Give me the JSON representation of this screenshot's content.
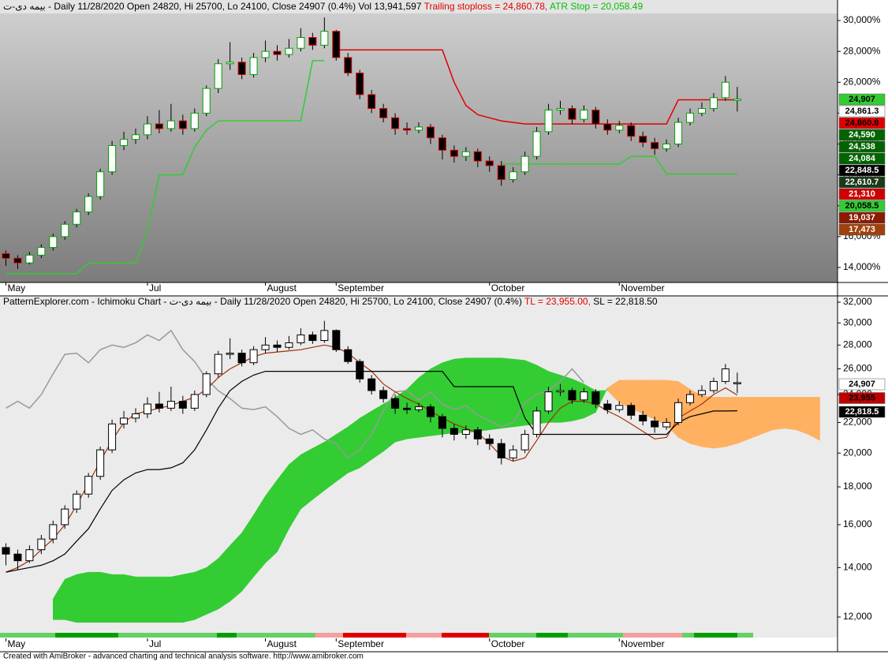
{
  "chart_data": [
    {
      "type": "candlestick",
      "title_main": "بیمه دی-ت - Daily 11/28/2020 Open 24820, Hi 25700, Lo 24100, Close 24907 (0.4%) Vol 13,941,597 ",
      "title_trailing": "Trailing stoploss = 24,860.78, ",
      "title_atr": "ATR Stop = 20,058.49",
      "xlim": [
        -0.5,
        70.5
      ],
      "xticks": [
        {
          "value": 0,
          "label": "May"
        },
        {
          "value": 12,
          "label": "Jul"
        },
        {
          "value": 22,
          "label": "August"
        },
        {
          "value": 28,
          "label": "September"
        },
        {
          "value": 41,
          "label": "October"
        },
        {
          "value": 52,
          "label": "November"
        }
      ],
      "ylim": [
        13030,
        30460
      ],
      "yticks": [
        {
          "value": 14000,
          "label": "14,000%"
        },
        {
          "value": 16000,
          "label": "16,000%"
        },
        {
          "value": 18000,
          "label": "18,000%"
        },
        {
          "value": 20000,
          "label": "20,000%"
        },
        {
          "value": 22000,
          "label": "22,000%"
        },
        {
          "value": 24000,
          "label": "24,000%"
        },
        {
          "value": 26000,
          "label": "26,000%"
        },
        {
          "value": 28000,
          "label": "28,000%"
        },
        {
          "value": 30000,
          "label": "30,000%"
        }
      ],
      "up_color": "#00a000",
      "down_color": "#e00000",
      "open": [
        14900,
        14600,
        14300,
        14800,
        15300,
        16000,
        16800,
        17600,
        18600,
        20200,
        21900,
        22300,
        22600,
        23300,
        23000,
        23500,
        23000,
        24000,
        25600,
        27200,
        27300,
        26500,
        27600,
        28000,
        27800,
        28200,
        28900,
        28400,
        29300,
        27600,
        26600,
        25200,
        24300,
        23700,
        23000,
        22900,
        23100,
        22400,
        21600,
        21200,
        21500,
        20900,
        20600,
        19700,
        20200,
        21200,
        22800,
        24200,
        24300,
        23600,
        24200,
        23300,
        22900,
        23200,
        22500,
        22100,
        21700,
        22000,
        23400,
        24000,
        24300,
        25000,
        24820
      ],
      "high": [
        15100,
        14800,
        15000,
        15500,
        16200,
        17000,
        17800,
        18800,
        20400,
        22200,
        22800,
        23000,
        23800,
        24200,
        24600,
        23900,
        24300,
        25800,
        27500,
        28600,
        27600,
        27900,
        28700,
        28400,
        28800,
        29500,
        29200,
        30200,
        29400,
        27900,
        26800,
        25500,
        24600,
        24000,
        23400,
        23400,
        23300,
        22600,
        21900,
        21800,
        21700,
        21200,
        20900,
        20500,
        21500,
        23100,
        24600,
        24800,
        24500,
        24500,
        24400,
        23600,
        23500,
        23400,
        22800,
        22400,
        22300,
        23700,
        24300,
        24700,
        25300,
        26400,
        25700
      ],
      "low": [
        14100,
        13900,
        14200,
        14600,
        15100,
        15800,
        16600,
        17400,
        18400,
        20000,
        21600,
        22000,
        22300,
        22700,
        22800,
        22600,
        22800,
        23800,
        25300,
        26800,
        26200,
        26300,
        27300,
        27400,
        27600,
        28000,
        28100,
        28200,
        27400,
        26400,
        24900,
        24000,
        23400,
        22600,
        22600,
        22700,
        22000,
        21000,
        20800,
        20900,
        20500,
        20200,
        19300,
        19500,
        20000,
        21000,
        22600,
        23900,
        23300,
        23400,
        23000,
        22600,
        22700,
        22200,
        21800,
        21300,
        21500,
        21800,
        23200,
        23800,
        24100,
        24800,
        24100
      ],
      "close": [
        14600,
        14300,
        14800,
        15300,
        16000,
        16800,
        17600,
        18600,
        20200,
        21900,
        22300,
        22600,
        23300,
        23000,
        23500,
        23000,
        24000,
        25600,
        27200,
        27300,
        26500,
        27600,
        28000,
        27800,
        28200,
        28900,
        28400,
        29300,
        27600,
        26600,
        25200,
        24300,
        23700,
        23000,
        22900,
        23100,
        22400,
        21600,
        21200,
        21500,
        20900,
        20600,
        19700,
        20200,
        21200,
        22800,
        24200,
        24300,
        23600,
        24200,
        23300,
        22900,
        23200,
        22500,
        22100,
        21700,
        22000,
        23400,
        24000,
        24300,
        25000,
        26000,
        24907
      ],
      "series": [
        {
          "color": "#e00000",
          "values": [
            null,
            null,
            null,
            null,
            null,
            null,
            null,
            null,
            null,
            null,
            null,
            null,
            null,
            null,
            null,
            null,
            null,
            null,
            null,
            null,
            null,
            null,
            null,
            null,
            null,
            null,
            null,
            null,
            28100,
            28100,
            28100,
            28100,
            28100,
            28100,
            28100,
            28100,
            28100,
            28100,
            26000,
            24500,
            23900,
            23700,
            23500,
            23400,
            23300,
            23300,
            23300,
            23300,
            23300,
            23300,
            23300,
            23300,
            23300,
            23300,
            23300,
            23300,
            23300,
            24860.78,
            24860.78,
            24860.78,
            24860.78,
            24860.78,
            24860.78
          ]
        },
        {
          "color": "#33cc33",
          "values": [
            13600,
            13600,
            13600,
            13600,
            13600,
            13600,
            13600,
            14300,
            14300,
            14300,
            14300,
            14300,
            16400,
            20000,
            20000,
            20000,
            21800,
            22900,
            23500,
            23500,
            23500,
            23500,
            23500,
            23500,
            23500,
            23500,
            27400,
            27400,
            null,
            null,
            null,
            null,
            null,
            null,
            null,
            null,
            null,
            null,
            null,
            null,
            null,
            null,
            20700,
            20700,
            20700,
            20700,
            20700,
            20700,
            20700,
            20700,
            20700,
            20700,
            20700,
            21200,
            21200,
            21200,
            20058.49,
            20058.49,
            20058.49,
            20058.49,
            20058.49,
            20058.49,
            20058.49
          ]
        }
      ],
      "price_labels": [
        {
          "value": 24907,
          "label": "24,907",
          "color": "#33cc33",
          "text_color": "#000"
        },
        {
          "value": 24861.3,
          "label": "24,861.3",
          "color": "#ffffff",
          "text_color": "#000"
        },
        {
          "value": 24860.8,
          "label": "24,860.8",
          "color": "#e00000",
          "text_color": "#000"
        },
        {
          "value": 24590,
          "label": "24,590",
          "color": "#006400",
          "text_color": "#fff"
        },
        {
          "value": 24538,
          "label": "24,538",
          "color": "#006400",
          "text_color": "#fff"
        },
        {
          "value": 24084,
          "label": "24,084",
          "color": "#006400",
          "text_color": "#fff"
        },
        {
          "value": 22848.5,
          "label": "22,848.5",
          "color": "#000000",
          "text_color": "#fff"
        },
        {
          "value": 22610.7,
          "label": "22,610.7",
          "color": "#1a3a1a",
          "text_color": "#fff"
        },
        {
          "value": 21310,
          "label": "21,310",
          "color": "#d00000",
          "text_color": "#fff"
        },
        {
          "value": 20058.5,
          "label": "20,058.5",
          "color": "#33cc33",
          "text_color": "#000"
        },
        {
          "value": 19037,
          "label": "19,037",
          "color": "#8b1a00",
          "text_color": "#fff"
        },
        {
          "value": 17473,
          "label": "17,473",
          "color": "#a0400a",
          "text_color": "#fff"
        }
      ]
    },
    {
      "type": "ichimoku",
      "title_main": "PatternExplorer.com - Ichimoku Chart - بیمه دی-ت - Daily 11/28/2020 Open 24820, Hi 25700, Lo 24100, Close 24907 (0.4%) ",
      "title_tl": "TL = 23,955.00, ",
      "title_sl": "SL = 22,818.50",
      "log_scale": true,
      "ylim": [
        11257,
        32635
      ],
      "yticks": [
        {
          "value": 12000,
          "label": "12,000"
        },
        {
          "value": 14000,
          "label": "14,000"
        },
        {
          "value": 16000,
          "label": "16,000"
        },
        {
          "value": 18000,
          "label": "18,000"
        },
        {
          "value": 20000,
          "label": "20,000"
        },
        {
          "value": 22000,
          "label": "22,000"
        },
        {
          "value": 24000,
          "label": "24,000"
        },
        {
          "value": 26000,
          "label": "26,000"
        },
        {
          "value": 28000,
          "label": "28,000"
        },
        {
          "value": 30000,
          "label": "30,000"
        },
        {
          "value": 32000,
          "label": "32,000"
        }
      ],
      "up_color": "#ffffff",
      "down_color": "#000000",
      "lagging_color": "#999999",
      "series": [
        {
          "color": "#a0300a",
          "values": [
            13800,
            14000,
            14300,
            14800,
            15300,
            16000,
            17000,
            18200,
            19500,
            20800,
            22000,
            22600,
            22800,
            23000,
            23200,
            23500,
            23800,
            24400,
            25300,
            26000,
            26500,
            27000,
            27300,
            27400,
            27500,
            27600,
            27800,
            28000,
            27800,
            27300,
            26500,
            25800,
            24800,
            24200,
            23700,
            23300,
            22800,
            22300,
            21900,
            21600,
            21300,
            20600,
            19800,
            19500,
            19700,
            20800,
            22000,
            23000,
            23500,
            23500,
            23300,
            22800,
            22400,
            21900,
            21400,
            20900,
            21000,
            22300,
            22800,
            23300,
            24000,
            24500,
            23955
          ]
        },
        {
          "color": "#000000",
          "values": [
            13800,
            13900,
            14000,
            14100,
            14300,
            14600,
            15200,
            15800,
            16800,
            17800,
            18400,
            18800,
            19000,
            19000,
            19100,
            19400,
            20200,
            21500,
            23000,
            24300,
            25000,
            25500,
            25800,
            25800,
            25800,
            25800,
            25800,
            25800,
            25800,
            25800,
            25800,
            25800,
            25800,
            25800,
            25800,
            25800,
            25800,
            25800,
            24600,
            24600,
            24600,
            24600,
            24600,
            24600,
            22300,
            21200,
            21200,
            21200,
            21200,
            21200,
            21200,
            21200,
            21200,
            21200,
            21200,
            21200,
            21200,
            22000,
            22400,
            22600,
            22800,
            22800,
            22818.5
          ]
        }
      ],
      "cloud": {
        "up_color": "#33cc33",
        "down_color": "#ffb060",
        "span_a": [
          null,
          null,
          null,
          null,
          12700,
          13500,
          13700,
          13800,
          13800,
          13700,
          13700,
          13600,
          13600,
          13600,
          13600,
          13700,
          13800,
          14000,
          14400,
          15000,
          15600,
          16500,
          17500,
          18400,
          19300,
          19900,
          20300,
          20700,
          21200,
          21700,
          22300,
          22800,
          23300,
          23800,
          24400,
          25300,
          26000,
          26500,
          26800,
          26900,
          26900,
          26900,
          26900,
          26800,
          26700,
          26300,
          25800,
          25500,
          25200,
          24800,
          24300,
          24300,
          23400,
          23000,
          22600,
          22200,
          21800,
          21000,
          20600,
          20400,
          20300,
          20400,
          20600,
          20900,
          21200,
          21500,
          21600,
          21500,
          21200,
          20800
        ],
        "span_b": [
          null,
          null,
          null,
          null,
          11900,
          11900,
          11800,
          11800,
          11800,
          11800,
          11800,
          11800,
          11800,
          11800,
          11800,
          11800,
          11900,
          12100,
          12300,
          12600,
          13000,
          13600,
          14200,
          14700,
          15800,
          16800,
          17300,
          17800,
          18300,
          18800,
          19100,
          19600,
          20100,
          20700,
          20900,
          21000,
          21100,
          21200,
          21300,
          21300,
          21400,
          21500,
          21600,
          21700,
          21800,
          21900,
          22000,
          22000,
          22100,
          22300,
          22700,
          24500,
          25100,
          25100,
          25100,
          25100,
          25100,
          25000,
          24400,
          23900,
          23800,
          23800,
          23800,
          23800,
          23800,
          23800,
          23800,
          23800,
          23800,
          23800
        ]
      },
      "price_labels": [
        {
          "value": 24907,
          "label": "24,907",
          "color": "#ffffff",
          "text_color": "#000"
        },
        {
          "value": 23955,
          "label": "23,955",
          "color": "#c00000",
          "text_color": "#000"
        },
        {
          "value": 22818.5,
          "label": "22,818.5",
          "color": "#000000",
          "text_color": "#fff"
        }
      ]
    }
  ],
  "footer": "Created with AmiBroker - advanced charting and technical analysis software. http://www.amibroker.com"
}
